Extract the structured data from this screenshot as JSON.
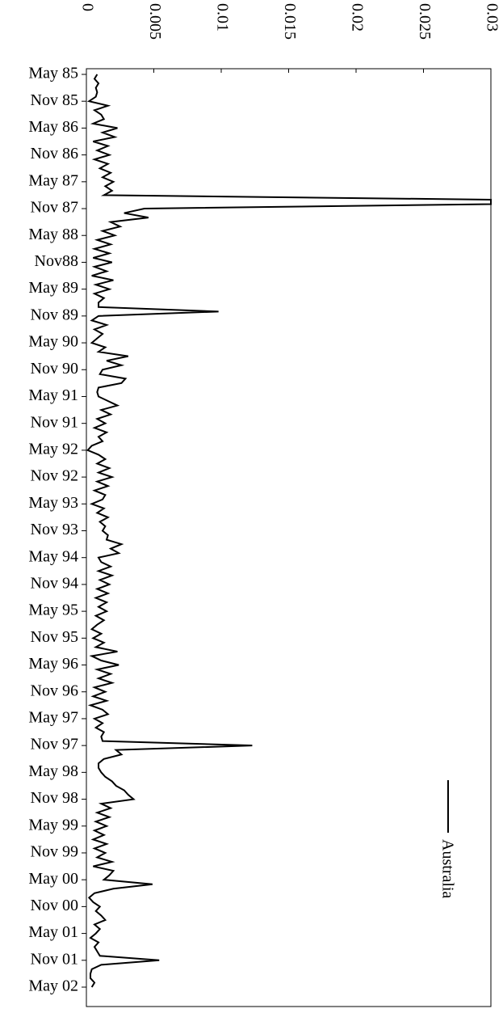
{
  "chart_data": {
    "type": "line",
    "categories": [
      "May 85",
      null,
      null,
      null,
      null,
      null,
      "Nov 85",
      null,
      null,
      null,
      null,
      null,
      "May 86",
      null,
      null,
      null,
      null,
      null,
      "Nov 86",
      null,
      null,
      null,
      null,
      null,
      "May 87",
      null,
      null,
      null,
      null,
      null,
      "Nov 87",
      null,
      null,
      null,
      null,
      null,
      "May 88",
      null,
      null,
      null,
      null,
      null,
      "Nov88",
      null,
      null,
      null,
      null,
      null,
      "May 89",
      null,
      null,
      null,
      null,
      null,
      "Nov 89",
      null,
      null,
      null,
      null,
      null,
      "May 90",
      null,
      null,
      null,
      null,
      null,
      "Nov 90",
      null,
      null,
      null,
      null,
      null,
      "May 91",
      null,
      null,
      null,
      null,
      null,
      "Nov 91",
      null,
      null,
      null,
      null,
      null,
      "May 92",
      null,
      null,
      null,
      null,
      null,
      "Nov 92",
      null,
      null,
      null,
      null,
      null,
      "May 93",
      null,
      null,
      null,
      null,
      null,
      "Nov 93",
      null,
      null,
      null,
      null,
      null,
      "May 94",
      null,
      null,
      null,
      null,
      null,
      "Nov 94",
      null,
      null,
      null,
      null,
      null,
      "May 95",
      null,
      null,
      null,
      null,
      null,
      "Nov 95",
      null,
      null,
      null,
      null,
      null,
      "May 96",
      null,
      null,
      null,
      null,
      null,
      "Nov 96",
      null,
      null,
      null,
      null,
      null,
      "May 97",
      null,
      null,
      null,
      null,
      null,
      "Nov 97",
      null,
      null,
      null,
      null,
      null,
      "May 98",
      null,
      null,
      null,
      null,
      null,
      "Nov 98",
      null,
      null,
      null,
      null,
      null,
      "May 99",
      null,
      null,
      null,
      null,
      null,
      "Nov 99",
      null,
      null,
      null,
      null,
      null,
      "May 00",
      null,
      null,
      null,
      null,
      null,
      "Nov 00",
      null,
      null,
      null,
      null,
      null,
      "May 01",
      null,
      null,
      null,
      null,
      null,
      "Nov 01",
      null,
      null,
      null,
      null,
      null,
      "May 02"
    ],
    "series": [
      {
        "name": "Australia",
        "color": "#000000",
        "values": [
          0.0008,
          0.0006,
          0.0009,
          0.0007,
          0.0008,
          0.0007,
          0.0002,
          0.0016,
          0.0006,
          0.0011,
          0.0013,
          0.0005,
          0.0023,
          0.0012,
          0.0021,
          0.0005,
          0.0016,
          0.0008,
          0.0017,
          0.0006,
          0.0016,
          0.001,
          0.0018,
          0.0012,
          0.002,
          0.0014,
          0.0019,
          0.0013,
          0.03,
          0.03,
          0.0043,
          0.0028,
          0.0046,
          0.0018,
          0.0025,
          0.0012,
          0.0021,
          0.0008,
          0.0018,
          0.0006,
          0.0017,
          0.0005,
          0.0019,
          0.0006,
          0.0015,
          0.0004,
          0.002,
          0.0007,
          0.0017,
          0.0006,
          0.0013,
          0.0009,
          0.0009,
          0.0098,
          0.0009,
          0.0004,
          0.0015,
          0.0006,
          0.0012,
          0.0008,
          0.0004,
          0.0014,
          0.0009,
          0.0031,
          0.0015,
          0.0026,
          0.0012,
          0.001,
          0.0029,
          0.0026,
          0.0009,
          0.0008,
          0.0009,
          0.0016,
          0.0023,
          0.0011,
          0.0018,
          0.0008,
          0.0014,
          0.0006,
          0.0015,
          0.0009,
          0.0012,
          0.0004,
          0.0001,
          0.0009,
          0.0014,
          0.0008,
          0.0017,
          0.0009,
          0.0019,
          0.0008,
          0.0016,
          0.0006,
          0.0014,
          0.0012,
          0.0004,
          0.0013,
          0.0008,
          0.0016,
          0.001,
          0.0014,
          0.0012,
          0.0016,
          0.0015,
          0.0026,
          0.0018,
          0.0024,
          0.0009,
          0.0011,
          0.0018,
          0.0009,
          0.0019,
          0.001,
          0.0017,
          0.0008,
          0.0016,
          0.0007,
          0.0015,
          0.0009,
          0.0015,
          0.0007,
          0.0013,
          0.0008,
          0.0004,
          0.0011,
          0.0005,
          0.0013,
          0.0007,
          0.0023,
          0.0004,
          0.0011,
          0.0024,
          0.0008,
          0.0018,
          0.0009,
          0.0019,
          0.0006,
          0.0014,
          0.0005,
          0.0015,
          0.0003,
          0.0012,
          0.0016,
          0.0006,
          0.0012,
          0.0007,
          0.0013,
          0.0011,
          0.0012,
          0.0123,
          0.0022,
          0.0026,
          0.0013,
          0.0009,
          0.0009,
          0.0011,
          0.0014,
          0.0019,
          0.0022,
          0.0028,
          0.0031,
          0.0035,
          0.0011,
          0.0018,
          0.0008,
          0.0017,
          0.0007,
          0.0015,
          0.0006,
          0.0013,
          0.0005,
          0.0015,
          0.0006,
          0.0014,
          0.0008,
          0.0019,
          0.0005,
          0.002,
          0.0017,
          0.0013,
          0.0049,
          0.002,
          0.0006,
          0.0002,
          0.0005,
          0.001,
          0.0007,
          0.0011,
          0.0014,
          0.0006,
          0.001,
          0.0007,
          0.0003,
          0.0009,
          0.0006,
          0.0008,
          0.001,
          0.0054,
          0.0011,
          0.0004,
          0.0003,
          0.0003,
          0.0006,
          0.0004
        ]
      }
    ],
    "ylim": [
      0,
      0.03
    ],
    "yticks": [
      0,
      0.005,
      0.01,
      0.015,
      0.02,
      0.025,
      0.03
    ]
  }
}
